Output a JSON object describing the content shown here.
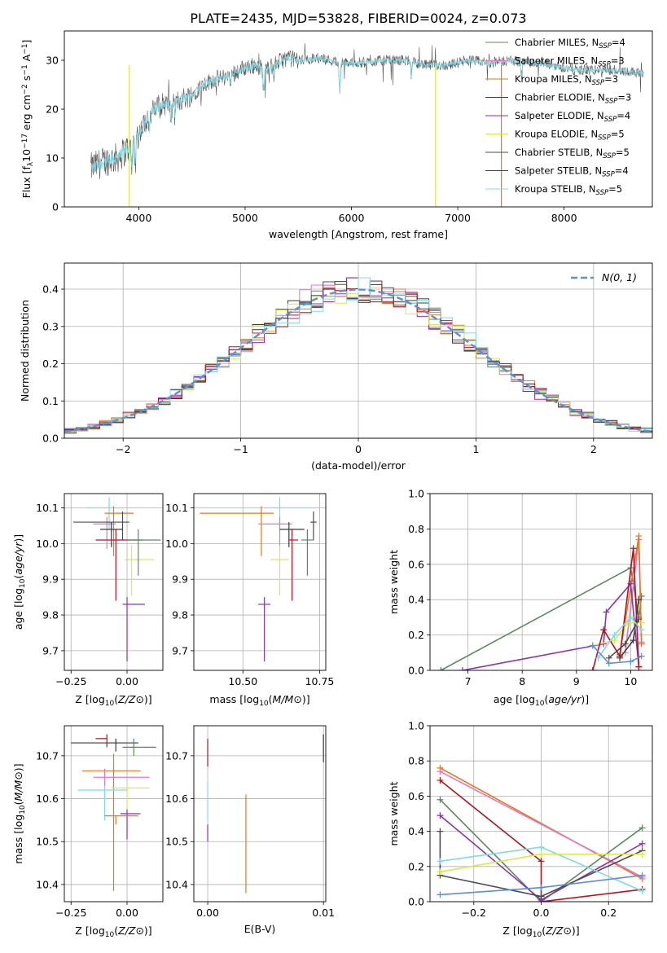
{
  "figure": {
    "title": "PLATE=2435, MJD=53828, FIBERID=0024, z=0.073"
  },
  "colors": {
    "chabrier_miles": "#5a8a5f",
    "salpeter_miles": "#e377c2",
    "kroupa_miles": "#e07a1f",
    "chabrier_elodie": "#3a3a3a",
    "salpeter_elodie": "#8e2fb0",
    "kroupa_elodie": "#d9e84a",
    "chabrier_stelib": "#4d4d4d",
    "salpeter_stelib": "#b2141e",
    "kroupa_stelib": "#80d9e6",
    "gauss": "#5b8fd6",
    "spectrum": "#555555"
  },
  "chart_data": [
    {
      "type": "line",
      "id": "spectrum",
      "xlabel": "wavelength [Angstrom, rest frame]",
      "ylabel": "Flux [f_λ 10^-17 erg cm^-2 s^-1 A^-1]",
      "xlim": [
        3300,
        8830
      ],
      "ylim": [
        0,
        36
      ],
      "xticks": [
        4000,
        5000,
        6000,
        7000,
        8000
      ],
      "yticks": [
        0,
        10,
        20,
        30
      ],
      "legend_position": "top-right",
      "continuum": [
        [
          3550,
          8
        ],
        [
          3700,
          9.5
        ],
        [
          3800,
          10
        ],
        [
          3900,
          12
        ],
        [
          4000,
          15
        ],
        [
          4100,
          19
        ],
        [
          4200,
          21
        ],
        [
          4300,
          21
        ],
        [
          4400,
          22
        ],
        [
          4500,
          23
        ],
        [
          4600,
          25
        ],
        [
          4700,
          26
        ],
        [
          4800,
          26.5
        ],
        [
          4900,
          27.5
        ],
        [
          5000,
          28.5
        ],
        [
          5100,
          29
        ],
        [
          5200,
          28
        ],
        [
          5300,
          29.5
        ],
        [
          5400,
          30.5
        ],
        [
          5500,
          30
        ],
        [
          5700,
          30.5
        ],
        [
          5900,
          29.5
        ],
        [
          6100,
          29.5
        ],
        [
          6300,
          30
        ],
        [
          6500,
          30
        ],
        [
          6700,
          29
        ],
        [
          6900,
          29
        ],
        [
          7100,
          30
        ],
        [
          7300,
          29.5
        ],
        [
          7500,
          30
        ],
        [
          7700,
          29.5
        ],
        [
          7900,
          29
        ],
        [
          8100,
          28
        ],
        [
          8300,
          28
        ],
        [
          8500,
          28
        ],
        [
          8700,
          27.5
        ]
      ],
      "legend": [
        {
          "key": "chabrier_miles",
          "label": "Chabrier MILES, N",
          "sub": "SSP",
          "suffix": "=4"
        },
        {
          "key": "salpeter_miles",
          "label": "Salpeter MILES, N",
          "sub": "SSP",
          "suffix": "=3"
        },
        {
          "key": "kroupa_miles",
          "label": "Kroupa MILES, N",
          "sub": "SSP",
          "suffix": "=3"
        },
        {
          "key": "chabrier_elodie",
          "label": "Chabrier ELODIE, N",
          "sub": "SSP",
          "suffix": "=3"
        },
        {
          "key": "salpeter_elodie",
          "label": "Salpeter ELODIE, N",
          "sub": "SSP",
          "suffix": "=4"
        },
        {
          "key": "kroupa_elodie",
          "label": "Kroupa ELODIE, N",
          "sub": "SSP",
          "suffix": "=5"
        },
        {
          "key": "chabrier_stelib",
          "label": "Chabrier STELIB, N",
          "sub": "SSP",
          "suffix": "=5"
        },
        {
          "key": "salpeter_stelib",
          "label": "Salpeter STELIB, N",
          "sub": "SSP",
          "suffix": "=4"
        },
        {
          "key": "kroupa_stelib",
          "label": "Kroupa STELIB, N",
          "sub": "SSP",
          "suffix": "=5"
        }
      ]
    },
    {
      "type": "histogram",
      "id": "residuals",
      "xlabel": "(data-model)/error",
      "ylabel": "Normed distribution",
      "xlim": [
        -2.5,
        2.5
      ],
      "ylim": [
        0,
        0.47
      ],
      "xticks": [
        -2,
        -1,
        0,
        1,
        2
      ],
      "yticks": [
        0.0,
        0.1,
        0.2,
        0.3,
        0.4
      ],
      "grid": true,
      "legend_position": "top-right",
      "gauss_label": "N(0, 1)",
      "bin_width": 0.1
    },
    {
      "type": "errorbar",
      "id": "age_vs_Z",
      "xlabel": "Z [log10(Z/Z⊙)]",
      "ylabel": "age [log10(age/yr)]",
      "xlim": [
        -0.28,
        0.16
      ],
      "ylim": [
        9.645,
        10.14
      ],
      "xticks": [
        -0.25,
        0.0
      ],
      "yticks": [
        9.7,
        9.8,
        9.9,
        10.0,
        10.1
      ],
      "grid": true,
      "points": [
        {
          "key": "kroupa_stelib",
          "x": -0.08,
          "xerr": [
            0.1,
            0.07
          ],
          "y": 10.1,
          "yerr": [
            0.06,
            0.03
          ]
        },
        {
          "key": "kroupa_miles",
          "x": -0.06,
          "xerr": [
            0.04,
            0.09
          ],
          "y": 10.085,
          "yerr": [
            0.12,
            0.02
          ]
        },
        {
          "key": "salpeter_miles",
          "x": -0.09,
          "xerr": [
            0.06,
            0.04
          ],
          "y": 10.055,
          "yerr": [
            0.07,
            0.02
          ]
        },
        {
          "key": "chabrier_stelib",
          "x": -0.02,
          "xerr": [
            0.22,
            0.03
          ],
          "y": 10.06,
          "yerr": [
            0.05,
            0.03
          ]
        },
        {
          "key": "chabrier_elodie",
          "x": -0.07,
          "xerr": [
            0.05,
            0.05
          ],
          "y": 10.04,
          "yerr": [
            0.05,
            0.02
          ]
        },
        {
          "key": "kroupa_elodie",
          "x": 0.02,
          "xerr": [
            0.03,
            0.1
          ],
          "y": 9.955,
          "yerr": [
            0.1,
            0.04
          ]
        },
        {
          "key": "salpeter_stelib",
          "x": -0.05,
          "xerr": [
            0.09,
            0.12
          ],
          "y": 10.01,
          "yerr": [
            0.17,
            0.03
          ]
        },
        {
          "key": "chabrier_miles",
          "x": 0.05,
          "xerr": [
            0.05,
            0.1
          ],
          "y": 10.01,
          "yerr": [
            0.1,
            0.03
          ]
        },
        {
          "key": "salpeter_elodie",
          "x": 0.0,
          "xerr": [
            0.02,
            0.08
          ],
          "y": 9.83,
          "yerr": [
            0.16,
            0.02
          ]
        }
      ]
    },
    {
      "type": "errorbar",
      "id": "age_vs_mass",
      "xlabel": "mass [log10(M/M⊙)]",
      "ylabel": "",
      "xlim": [
        10.34,
        10.77
      ],
      "ylim": [
        9.645,
        10.14
      ],
      "xticks": [
        10.5,
        10.75
      ],
      "yticks": [
        9.7,
        9.8,
        9.9,
        10.0,
        10.1
      ],
      "grid": true,
      "points": [
        {
          "key": "kroupa_stelib",
          "x": 10.62,
          "xerr": [
            0.05,
            0.12
          ],
          "y": 10.1,
          "yerr": [
            0.06,
            0.03
          ]
        },
        {
          "key": "kroupa_miles",
          "x": 10.56,
          "xerr": [
            0.2,
            0.04
          ],
          "y": 10.085,
          "yerr": [
            0.12,
            0.02
          ]
        },
        {
          "key": "salpeter_miles",
          "x": 10.62,
          "xerr": [
            0.07,
            0.04
          ],
          "y": 10.055,
          "yerr": [
            0.07,
            0.02
          ]
        },
        {
          "key": "chabrier_stelib",
          "x": 10.73,
          "xerr": [
            0.01,
            0.01
          ],
          "y": 10.06,
          "yerr": [
            0.05,
            0.03
          ]
        },
        {
          "key": "chabrier_elodie",
          "x": 10.65,
          "xerr": [
            0.03,
            0.05
          ],
          "y": 10.04,
          "yerr": [
            0.05,
            0.02
          ]
        },
        {
          "key": "kroupa_elodie",
          "x": 10.62,
          "xerr": [
            0.03,
            0.03
          ],
          "y": 9.955,
          "yerr": [
            0.1,
            0.04
          ]
        },
        {
          "key": "salpeter_stelib",
          "x": 10.66,
          "xerr": [
            0.01,
            0.02
          ],
          "y": 10.01,
          "yerr": [
            0.17,
            0.03
          ]
        },
        {
          "key": "chabrier_miles",
          "x": 10.71,
          "xerr": [
            0.02,
            0.02
          ],
          "y": 10.01,
          "yerr": [
            0.1,
            0.03
          ]
        },
        {
          "key": "salpeter_elodie",
          "x": 10.57,
          "xerr": [
            0.02,
            0.02
          ],
          "y": 9.83,
          "yerr": [
            0.16,
            0.02
          ]
        }
      ]
    },
    {
      "type": "line",
      "id": "weight_vs_age",
      "xlabel": "age [log10(age/yr)]",
      "ylabel": "mass weight",
      "xlim": [
        6.3,
        10.4
      ],
      "ylim": [
        0,
        1
      ],
      "xticks": [
        7,
        8,
        9,
        10
      ],
      "yticks": [
        0.0,
        0.2,
        0.4,
        0.6,
        0.8,
        1.0
      ],
      "grid": true,
      "series": [
        {
          "key": "chabrier_miles",
          "x": [
            6.5,
            10.0,
            10.15,
            10.2
          ],
          "y": [
            0.0,
            0.58,
            0.3,
            0.42
          ]
        },
        {
          "key": "salpeter_miles",
          "x": [
            9.9,
            10.15,
            10.2
          ],
          "y": [
            0.1,
            0.74,
            0.16
          ]
        },
        {
          "key": "kroupa_miles",
          "x": [
            9.8,
            10.15,
            10.2
          ],
          "y": [
            0.09,
            0.76,
            0.15
          ]
        },
        {
          "key": "chabrier_elodie",
          "x": [
            9.8,
            10.05,
            10.15
          ],
          "y": [
            0.07,
            0.17,
            0.4
          ]
        },
        {
          "key": "salpeter_elodie",
          "x": [
            6.9,
            9.5,
            9.55,
            10.0,
            10.15
          ],
          "y": [
            0.0,
            0.15,
            0.33,
            0.49,
            0.02
          ]
        },
        {
          "key": "kroupa_elodie",
          "x": [
            9.3,
            9.7,
            9.95,
            10.2
          ],
          "y": [
            0.14,
            0.17,
            0.27,
            0.27
          ]
        },
        {
          "key": "chabrier_stelib",
          "x": [
            9.6,
            9.9,
            10.15
          ],
          "y": [
            0.07,
            0.15,
            0.29
          ]
        },
        {
          "key": "salpeter_stelib",
          "x": [
            9.3,
            9.5,
            9.8,
            10.05,
            10.15
          ],
          "y": [
            0.0,
            0.23,
            0.08,
            0.69,
            0.02
          ]
        },
        {
          "key": "kroupa_stelib",
          "x": [
            9.4,
            9.7,
            10.0,
            10.2
          ],
          "y": [
            0.07,
            0.2,
            0.3,
            0.23
          ]
        },
        {
          "key": "gauss",
          "x": [
            9.3,
            9.6,
            10.0,
            10.2
          ],
          "y": [
            0.14,
            0.04,
            0.05,
            0.08
          ]
        }
      ]
    },
    {
      "type": "errorbar",
      "id": "mass_vs_Z",
      "xlabel": "Z [log10(Z/Z⊙)]",
      "ylabel": "mass [log10(M/M⊙)]",
      "xlim": [
        -0.28,
        0.16
      ],
      "ylim": [
        10.36,
        10.77
      ],
      "xticks": [
        -0.25,
        0.0
      ],
      "yticks": [
        10.4,
        10.5,
        10.6,
        10.7
      ],
      "grid": true,
      "points": [
        {
          "key": "chabrier_elodie",
          "x": -0.05,
          "xerr": [
            0.2,
            0.1
          ],
          "y": 10.73,
          "yerr": [
            0.02,
            0.01
          ]
        },
        {
          "key": "chabrier_miles",
          "x": 0.03,
          "xerr": [
            0.05,
            0.1
          ],
          "y": 10.72,
          "yerr": [
            0.02,
            0.02
          ]
        },
        {
          "key": "salpeter_stelib",
          "x": -0.09,
          "xerr": [
            0.05,
            0.0
          ],
          "y": 10.74,
          "yerr": [
            0.02,
            0.01
          ]
        },
        {
          "key": "kroupa_miles",
          "x": -0.06,
          "xerr": [
            0.14,
            0.12
          ],
          "y": 10.665,
          "yerr": [
            0.28,
            0.04
          ]
        },
        {
          "key": "salpeter_miles",
          "x": -0.1,
          "xerr": [
            0.05,
            0.2
          ],
          "y": 10.65,
          "yerr": [
            0.05,
            0.02
          ]
        },
        {
          "key": "kroupa_elodie",
          "x": 0.0,
          "xerr": [
            0.07,
            0.1
          ],
          "y": 10.625,
          "yerr": [
            0.05,
            0.01
          ]
        },
        {
          "key": "kroupa_stelib",
          "x": -0.1,
          "xerr": [
            0.12,
            0.1
          ],
          "y": 10.62,
          "yerr": [
            0.07,
            0.01
          ]
        },
        {
          "key": "salpeter_elodie",
          "x": 0.0,
          "xerr": [
            0.03,
            0.06
          ],
          "y": 10.565,
          "yerr": [
            0.06,
            0.01
          ]
        },
        {
          "key": "kroupa_miles",
          "x": -0.05,
          "xerr": [
            0.05,
            0.1
          ],
          "y": 10.56,
          "yerr": [
            0.02,
            0.0
          ]
        }
      ]
    },
    {
      "type": "errorbar",
      "id": "mass_vs_ebv",
      "xlabel": "E(B-V)",
      "ylabel": "",
      "xlim": [
        -0.0012,
        0.0102
      ],
      "ylim": [
        10.36,
        10.77
      ],
      "xticks": [
        0.0,
        0.01
      ],
      "yticks": [
        10.4,
        10.5,
        10.6,
        10.7
      ],
      "grid": true,
      "points": [
        {
          "key": "salpeter_stelib",
          "x": 0.0,
          "y": 10.705,
          "yerr": [
            0.03,
            0.035
          ]
        },
        {
          "key": "salpeter_elodie",
          "x": 0.0,
          "y": 10.52,
          "yerr": [
            0.02,
            0.02
          ]
        },
        {
          "key": "kroupa_stelib",
          "x": 0.0,
          "y": 10.6,
          "yerr": [
            0.05,
            0.04
          ]
        },
        {
          "key": "kroupa_miles",
          "x": 0.0033,
          "y": 10.5,
          "yerr": [
            0.12,
            0.11
          ]
        },
        {
          "key": "chabrier_elodie",
          "x": 0.01,
          "y": 10.715,
          "yerr": [
            0.03,
            0.035
          ]
        }
      ]
    },
    {
      "type": "line",
      "id": "weight_vs_Z",
      "xlabel": "Z [log10(Z/Z⊙)]",
      "ylabel": "mass weight",
      "xlim": [
        -0.33,
        0.33
      ],
      "ylim": [
        0,
        1
      ],
      "xticks": [
        -0.2,
        0.0,
        0.2
      ],
      "yticks": [
        0.0,
        0.2,
        0.4,
        0.6,
        0.8,
        1.0
      ],
      "grid": true,
      "series": [
        {
          "key": "kroupa_miles",
          "x": [
            -0.3,
            0.3
          ],
          "y": [
            0.76,
            0.13
          ]
        },
        {
          "key": "salpeter_miles",
          "x": [
            -0.3,
            0.3
          ],
          "y": [
            0.74,
            0.14
          ]
        },
        {
          "key": "chabrier_miles",
          "x": [
            -0.3,
            0.0,
            0.3
          ],
          "y": [
            0.58,
            0.0,
            0.42
          ]
        },
        {
          "key": "salpeter_stelib",
          "x": [
            -0.3,
            0.0,
            0.0,
            0.3
          ],
          "y": [
            0.69,
            0.23,
            0.0,
            0.07
          ]
        },
        {
          "key": "salpeter_elodie",
          "x": [
            -0.3,
            0.0,
            0.3
          ],
          "y": [
            0.49,
            0.01,
            0.33
          ]
        },
        {
          "key": "chabrier_stelib",
          "x": [
            -0.3,
            -0.3,
            0.0,
            0.3
          ],
          "y": [
            0.4,
            0.15,
            0.03,
            0.29
          ]
        },
        {
          "key": "kroupa_stelib",
          "x": [
            -0.3,
            0.0,
            0.3
          ],
          "y": [
            0.23,
            0.31,
            0.06
          ]
        },
        {
          "key": "kroupa_elodie",
          "x": [
            -0.3,
            0.0,
            0.3
          ],
          "y": [
            0.17,
            0.27,
            0.27
          ]
        },
        {
          "key": "gauss",
          "x": [
            -0.3,
            0.0,
            0.3
          ],
          "y": [
            0.04,
            0.08,
            0.15
          ]
        }
      ]
    }
  ]
}
